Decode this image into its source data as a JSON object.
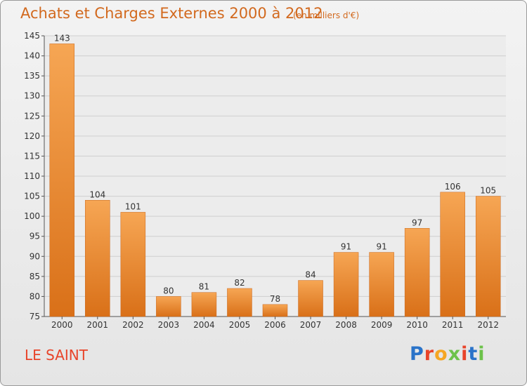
{
  "header": {
    "title": "Achats et Charges Externes 2000 à 2012",
    "subtitle": "(en milliers d'€)"
  },
  "footer": {
    "commune": "LE SAINT",
    "brand": "Proxiti",
    "brand_letters": [
      {
        "ch": "P",
        "color": "#2a73c9"
      },
      {
        "ch": "r",
        "color": "#e8442a"
      },
      {
        "ch": "o",
        "color": "#f5a623"
      },
      {
        "ch": "x",
        "color": "#6cc24a"
      },
      {
        "ch": "i",
        "color": "#e8442a"
      },
      {
        "ch": "t",
        "color": "#2a73c9"
      },
      {
        "ch": "i",
        "color": "#6cc24a"
      }
    ]
  },
  "colors": {
    "title": "#d2691e",
    "commune": "#e8442a",
    "bar_top": "#f6a654",
    "bar_bottom": "#d97018",
    "grid": "#cfcfcf"
  },
  "chart_data": {
    "type": "bar",
    "categories": [
      "2000",
      "2001",
      "2002",
      "2003",
      "2004",
      "2005",
      "2006",
      "2007",
      "2008",
      "2009",
      "2010",
      "2011",
      "2012"
    ],
    "values": [
      143,
      104,
      101,
      80,
      81,
      82,
      78,
      84,
      91,
      91,
      97,
      106,
      105
    ],
    "title": "Achats et Charges Externes 2000 à 2012",
    "subtitle": "(en milliers d'€)",
    "xlabel": "",
    "ylabel": "",
    "ylim": [
      75,
      145
    ],
    "yticks": [
      75,
      80,
      85,
      90,
      95,
      100,
      105,
      110,
      115,
      120,
      125,
      130,
      135,
      140,
      145
    ],
    "grid": true,
    "data_labels": true
  }
}
